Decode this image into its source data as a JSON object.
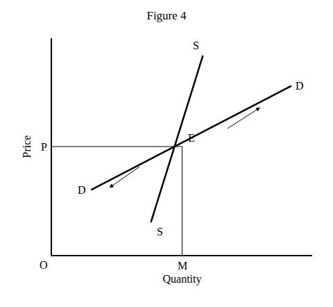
{
  "chart_data": {
    "type": "line",
    "title": "Figure 4",
    "xlabel": "Quantity",
    "ylabel": "Price",
    "color": "#000000",
    "xlim": [
      0,
      10
    ],
    "ylim": [
      0,
      10
    ],
    "xticks": [],
    "yticks": [],
    "tick_labels": false,
    "grid": false,
    "series": [
      {
        "x": [
          3.8,
          5.8
        ],
        "values": [
          1.5,
          9.2
        ],
        "line_style": "solid"
      },
      {
        "x": [
          1.5,
          9.2
        ],
        "values": [
          3.0,
          7.8
        ],
        "line_style": "solid"
      },
      {
        "x": [
          0,
          5.0
        ],
        "values": [
          5.0,
          5.0
        ],
        "line_style": "thin"
      },
      {
        "x": [
          5.0,
          5.0
        ],
        "values": [
          0,
          5.0
        ],
        "line_style": "thin"
      }
    ],
    "annotations": [
      {
        "text": "S",
        "x": 5.8,
        "y": 9.2,
        "position": "upper left"
      },
      {
        "text": "S",
        "x": 3.8,
        "y": 1.5,
        "position": "lower right"
      },
      {
        "text": "D",
        "x": 9.2,
        "y": 7.8,
        "position": "right"
      },
      {
        "text": "D",
        "x": 1.5,
        "y": 3.0,
        "position": "left"
      },
      {
        "text": "E",
        "x": 5.0,
        "y": 5.0,
        "position": "upper right"
      },
      {
        "text": "P",
        "x": 0,
        "y": 5.0,
        "position": "left"
      },
      {
        "text": "M",
        "x": 5.0,
        "y": 0,
        "position": "below"
      },
      {
        "text": "O",
        "x": 0,
        "y": 0,
        "position": "lower left"
      }
    ],
    "arrows": [
      {
        "x": [
          6.7,
          8.0
        ],
        "y": [
          5.8,
          6.8
        ]
      },
      {
        "x": [
          3.4,
          2.2
        ],
        "y": [
          4.1,
          3.1
        ]
      }
    ]
  }
}
